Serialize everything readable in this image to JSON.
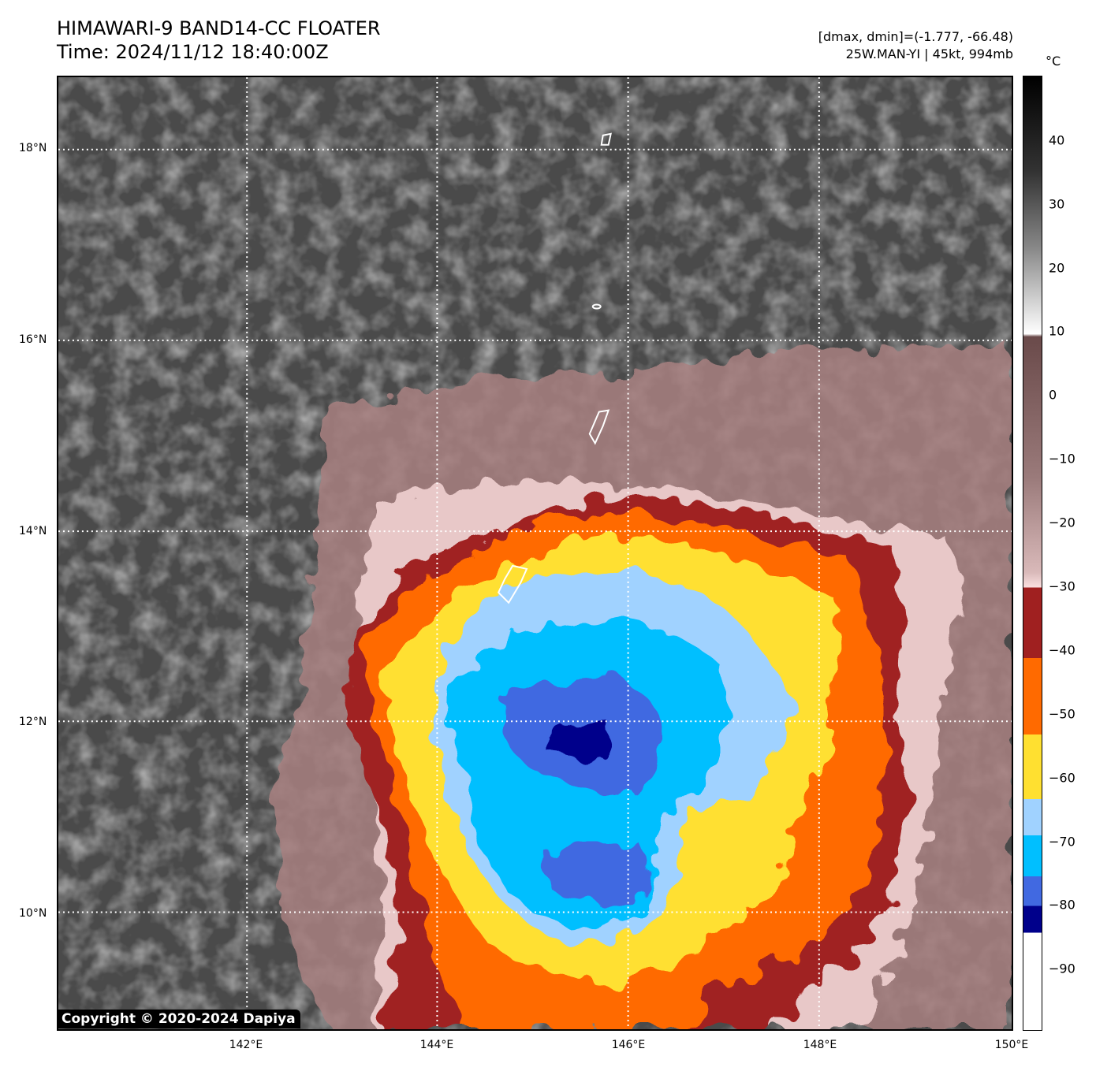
{
  "title": {
    "line1": "HIMAWARI-9 BAND14-CC FLOATER",
    "line2": "Time: 2024/11/12 18:40:00Z"
  },
  "info": {
    "range": "[dmax, dmin]=(-1.777, -66.48)",
    "storm": "25W.MAN-YI | 45kt, 994mb"
  },
  "axes": {
    "lat_labels": [
      "18°N",
      "16°N",
      "14°N",
      "12°N",
      "10°N"
    ],
    "lon_labels": [
      "142°E",
      "144°E",
      "146°E",
      "148°E",
      "150°E"
    ]
  },
  "colorbar": {
    "unit": "°C",
    "ticks": [
      "40",
      "30",
      "20",
      "10",
      "0",
      "−10",
      "−20",
      "−30",
      "−40",
      "−50",
      "−60",
      "−70",
      "−80",
      "−90"
    ],
    "colors": {
      "dark_red": "#a02020",
      "orange": "#ff6a00",
      "yellow": "#ffe030",
      "light_blue": "#a0d2ff",
      "sky_blue": "#00bfff",
      "royal_blue": "#4169e1",
      "navy": "#00008b"
    }
  },
  "copyright": "Copyright © 2020-2024 Dapiya"
}
